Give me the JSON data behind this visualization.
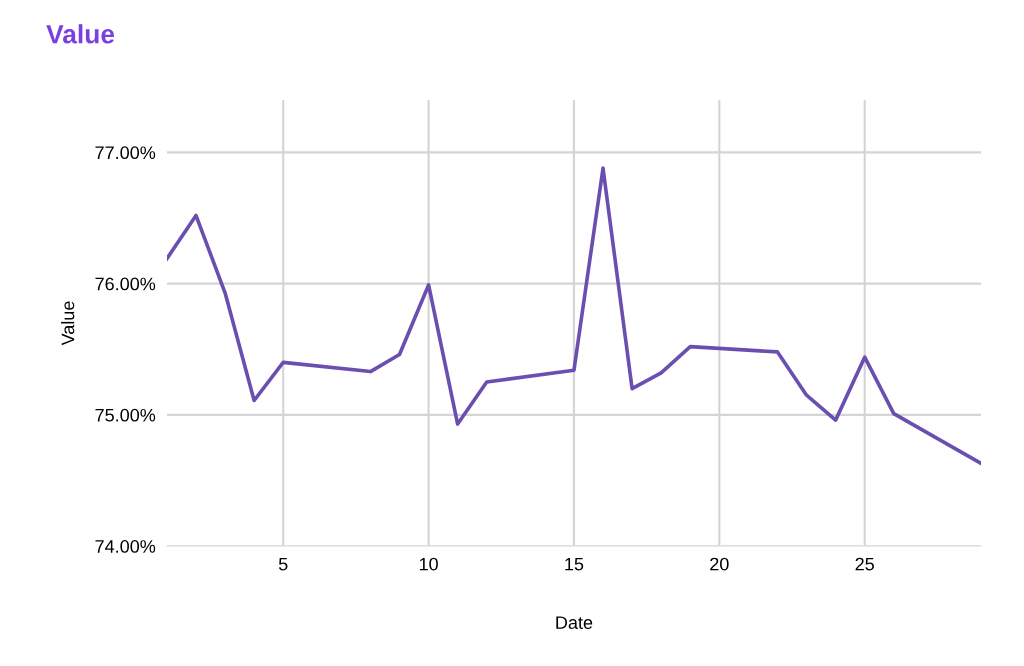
{
  "chart_data": {
    "type": "line",
    "title": "Value",
    "xlabel": "Date",
    "ylabel": "Value",
    "x": [
      1,
      2,
      3,
      4,
      5,
      8,
      9,
      10,
      11,
      12,
      15,
      16,
      17,
      18,
      19,
      22,
      23,
      24,
      25,
      26,
      29
    ],
    "series": [
      {
        "color": "#6a4fb0",
        "values": [
          76.19,
          76.52,
          75.93,
          75.11,
          75.4,
          75.33,
          75.46,
          75.99,
          74.93,
          75.25,
          75.34,
          76.88,
          75.2,
          75.32,
          75.52,
          75.48,
          75.15,
          74.96,
          75.44,
          75.01,
          74.63
        ]
      }
    ],
    "xlim": [
      1,
      29
    ],
    "ylim": [
      74,
      77.4
    ],
    "xticks": [
      5,
      10,
      15,
      20,
      25
    ],
    "yticks": [
      {
        "value": 74,
        "label": "74.00%"
      },
      {
        "value": 75,
        "label": "75.00%"
      },
      {
        "value": 76,
        "label": "76.00%"
      },
      {
        "value": 77,
        "label": "77.00%"
      }
    ],
    "grid": true,
    "marker": "none",
    "line_style": "solid"
  }
}
